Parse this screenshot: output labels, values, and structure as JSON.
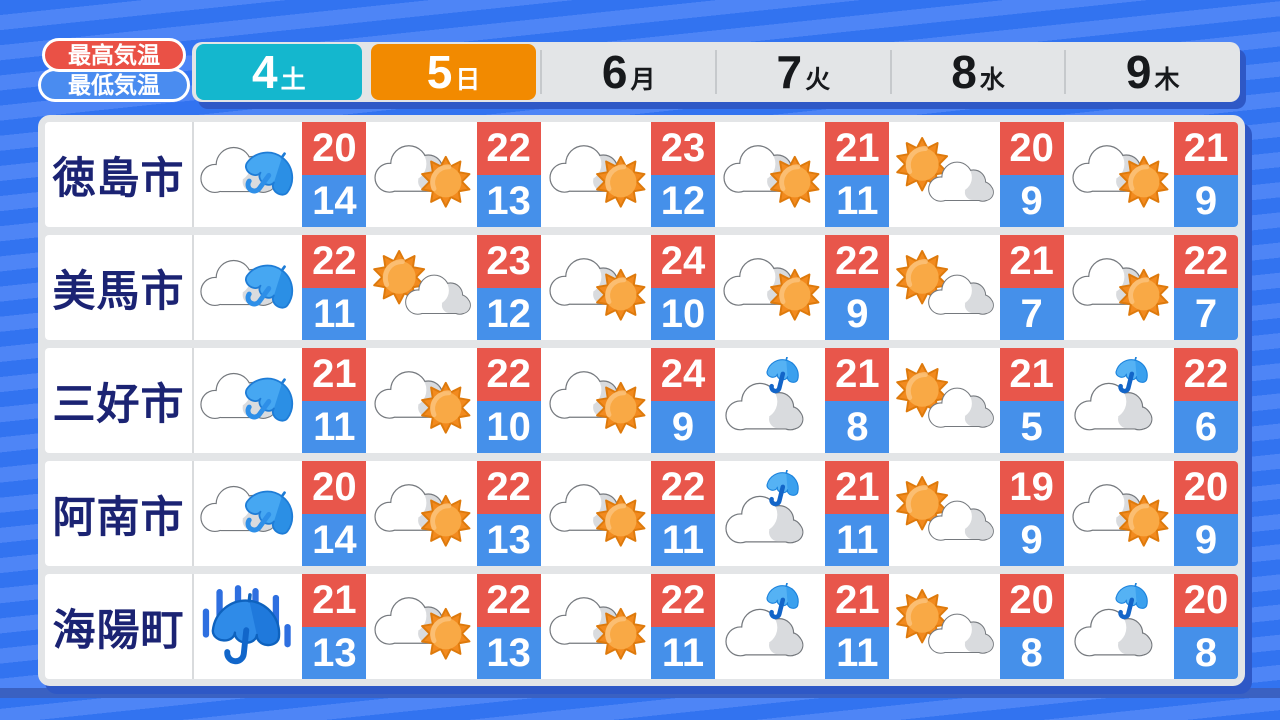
{
  "colors": {
    "high_temp_red": "#E8564B",
    "low_temp_blue": "#4590EA",
    "saturday_teal": "#14B7CE",
    "sunday_orange": "#F28A00",
    "city_text_navy": "#1B2373",
    "panel_gray": "#E3E5E7",
    "background_blue": "#3273F0"
  },
  "legend": {
    "high_label": "最高気温",
    "low_label": "最低気温"
  },
  "chart_data": {
    "type": "table",
    "columns": [
      {
        "date": "4",
        "weekday": "土",
        "style": "saturday"
      },
      {
        "date": "5",
        "weekday": "日",
        "style": "sunday"
      },
      {
        "date": "6",
        "weekday": "月",
        "style": "weekday"
      },
      {
        "date": "7",
        "weekday": "火",
        "style": "weekday"
      },
      {
        "date": "8",
        "weekday": "水",
        "style": "weekday"
      },
      {
        "date": "9",
        "weekday": "木",
        "style": "weekday"
      }
    ],
    "rows": [
      {
        "city": "徳島市",
        "cells": [
          {
            "weather": "cloud-umbrella",
            "high": 20,
            "low": 14
          },
          {
            "weather": "cloud-sun",
            "high": 22,
            "low": 13
          },
          {
            "weather": "cloud-sun",
            "high": 23,
            "low": 12
          },
          {
            "weather": "cloud-sun",
            "high": 21,
            "low": 11
          },
          {
            "weather": "sun-cloud",
            "high": 20,
            "low": 9
          },
          {
            "weather": "cloud-sun",
            "high": 21,
            "low": 9
          }
        ]
      },
      {
        "city": "美馬市",
        "cells": [
          {
            "weather": "cloud-umbrella",
            "high": 22,
            "low": 11
          },
          {
            "weather": "sun-cloud",
            "high": 23,
            "low": 12
          },
          {
            "weather": "cloud-sun",
            "high": 24,
            "low": 10
          },
          {
            "weather": "cloud-sun",
            "high": 22,
            "low": 9
          },
          {
            "weather": "sun-cloud",
            "high": 21,
            "low": 7
          },
          {
            "weather": "cloud-sun",
            "high": 22,
            "low": 7
          }
        ]
      },
      {
        "city": "三好市",
        "cells": [
          {
            "weather": "cloud-umbrella",
            "high": 21,
            "low": 11
          },
          {
            "weather": "cloud-sun",
            "high": 22,
            "low": 10
          },
          {
            "weather": "cloud-sun",
            "high": 24,
            "low": 9
          },
          {
            "weather": "cloud-umbrella-top",
            "high": 21,
            "low": 8
          },
          {
            "weather": "sun-cloud",
            "high": 21,
            "low": 5
          },
          {
            "weather": "cloud-umbrella-top",
            "high": 22,
            "low": 6
          }
        ]
      },
      {
        "city": "阿南市",
        "cells": [
          {
            "weather": "cloud-umbrella",
            "high": 20,
            "low": 14
          },
          {
            "weather": "cloud-sun",
            "high": 22,
            "low": 13
          },
          {
            "weather": "cloud-sun",
            "high": 22,
            "low": 11
          },
          {
            "weather": "cloud-umbrella-top",
            "high": 21,
            "low": 11
          },
          {
            "weather": "sun-cloud",
            "high": 19,
            "low": 9
          },
          {
            "weather": "cloud-sun",
            "high": 20,
            "low": 9
          }
        ]
      },
      {
        "city": "海陽町",
        "cells": [
          {
            "weather": "rain",
            "high": 21,
            "low": 13
          },
          {
            "weather": "cloud-sun",
            "high": 22,
            "low": 13
          },
          {
            "weather": "cloud-sun",
            "high": 22,
            "low": 11
          },
          {
            "weather": "cloud-umbrella-top",
            "high": 21,
            "low": 11
          },
          {
            "weather": "sun-cloud",
            "high": 20,
            "low": 8
          },
          {
            "weather": "cloud-umbrella-top",
            "high": 20,
            "low": 8
          }
        ]
      }
    ]
  }
}
